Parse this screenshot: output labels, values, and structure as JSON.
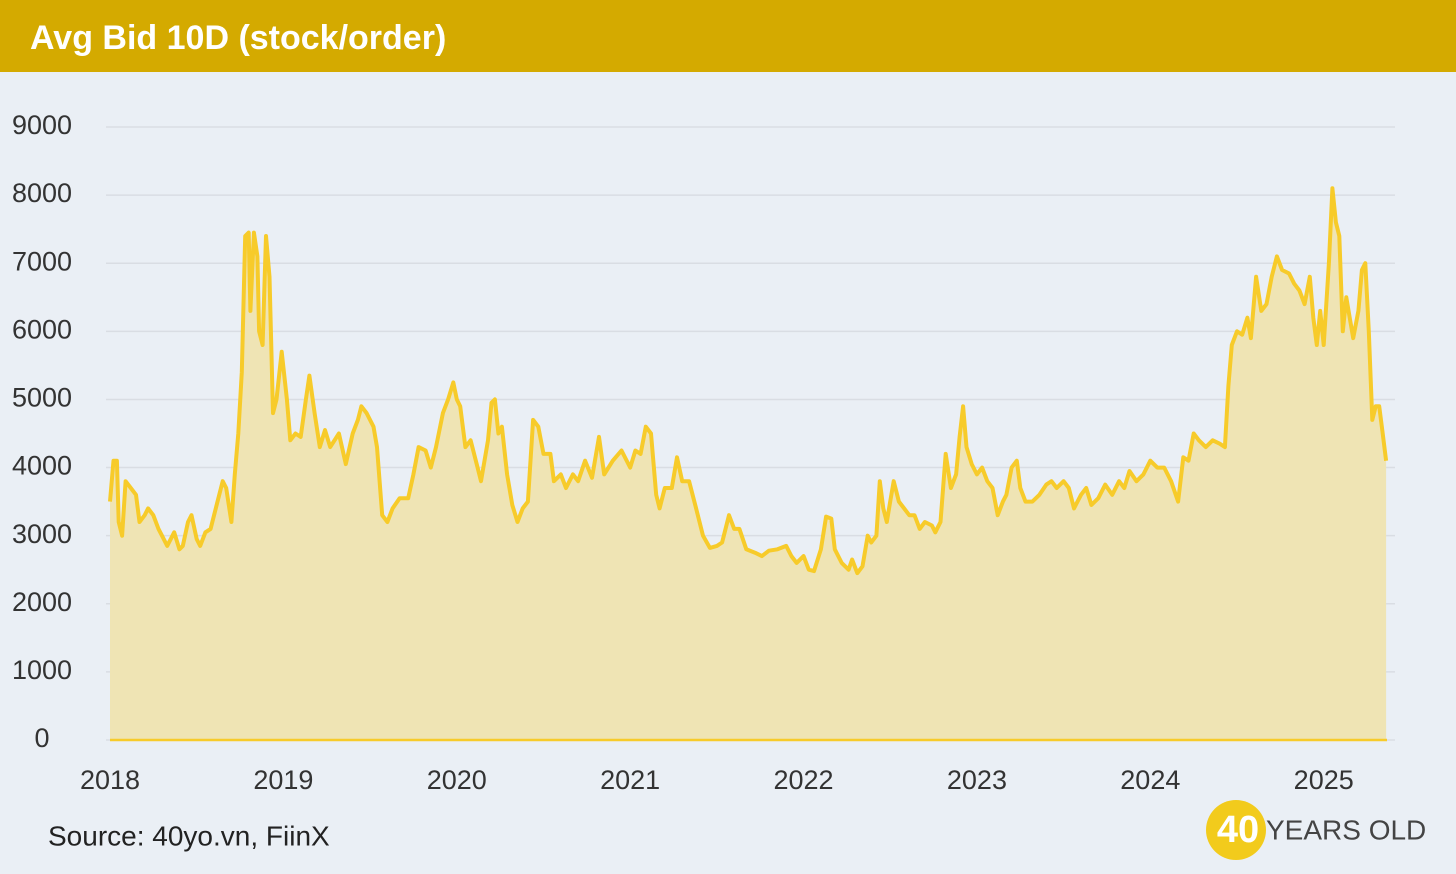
{
  "chart_data": {
    "type": "area",
    "title": "Avg Bid 10D (stock/order)",
    "source": "Source: 40yo.vn, FiinX",
    "brand": [
      "40",
      "YEARS OLD"
    ],
    "color": "#f7cb2a",
    "fill_color": "#efe4b4",
    "grid": true,
    "xlim": [
      2018,
      2025.365
    ],
    "xticks": [
      2018,
      2019,
      2020,
      2021,
      2022,
      2023,
      2024,
      2025
    ],
    "ylim": [
      0,
      9000
    ],
    "yticks": [
      0,
      1000,
      2000,
      3000,
      4000,
      5000,
      6000,
      7000,
      8000,
      9000
    ],
    "x": [
      2018.0,
      2018.02,
      2018.04,
      2018.05,
      2018.07,
      2018.09,
      2018.12,
      2018.15,
      2018.17,
      2018.2,
      2018.22,
      2018.25,
      2018.28,
      2018.3,
      2018.33,
      2018.37,
      2018.4,
      2018.42,
      2018.45,
      2018.47,
      2018.5,
      2018.52,
      2018.55,
      2018.58,
      2018.62,
      2018.65,
      2018.67,
      2018.7,
      2018.72,
      2018.74,
      2018.76,
      2018.78,
      2018.8,
      2018.81,
      2018.83,
      2018.85,
      2018.86,
      2018.88,
      2018.9,
      2018.92,
      2018.94,
      2018.96,
      2018.99,
      2019.02,
      2019.04,
      2019.07,
      2019.1,
      2019.13,
      2019.15,
      2019.18,
      2019.21,
      2019.24,
      2019.27,
      2019.32,
      2019.36,
      2019.4,
      2019.43,
      2019.45,
      2019.48,
      2019.52,
      2019.54,
      2019.57,
      2019.6,
      2019.63,
      2019.67,
      2019.72,
      2019.75,
      2019.78,
      2019.82,
      2019.85,
      2019.88,
      2019.92,
      2019.95,
      2019.98,
      2020.0,
      2020.02,
      2020.05,
      2020.08,
      2020.12,
      2020.14,
      2020.18,
      2020.2,
      2020.22,
      2020.24,
      2020.26,
      2020.29,
      2020.32,
      2020.35,
      2020.38,
      2020.41,
      2020.44,
      2020.47,
      2020.5,
      2020.54,
      2020.56,
      2020.6,
      2020.63,
      2020.67,
      2020.7,
      2020.74,
      2020.78,
      2020.82,
      2020.85,
      2020.9,
      2020.95,
      2021.0,
      2021.03,
      2021.06,
      2021.09,
      2021.12,
      2021.15,
      2021.17,
      2021.2,
      2021.24,
      2021.27,
      2021.3,
      2021.34,
      2021.38,
      2021.42,
      2021.46,
      2021.5,
      2021.53,
      2021.57,
      2021.6,
      2021.63,
      2021.67,
      2021.72,
      2021.76,
      2021.8,
      2021.85,
      2021.9,
      2021.93,
      2021.96,
      2022.0,
      2022.03,
      2022.06,
      2022.1,
      2022.13,
      2022.16,
      2022.18,
      2022.22,
      2022.26,
      2022.28,
      2022.31,
      2022.34,
      2022.37,
      2022.39,
      2022.42,
      2022.44,
      2022.46,
      2022.48,
      2022.5,
      2022.52,
      2022.55,
      2022.58,
      2022.61,
      2022.64,
      2022.67,
      2022.7,
      2022.74,
      2022.76,
      2022.79,
      2022.82,
      2022.85,
      2022.88,
      2022.9,
      2022.92,
      2022.94,
      2022.97,
      2023.0,
      2023.03,
      2023.06,
      2023.09,
      2023.12,
      2023.15,
      2023.17,
      2023.2,
      2023.23,
      2023.25,
      2023.28,
      2023.32,
      2023.36,
      2023.4,
      2023.43,
      2023.46,
      2023.5,
      2023.53,
      2023.56,
      2023.6,
      2023.63,
      2023.66,
      2023.7,
      2023.74,
      2023.78,
      2023.82,
      2023.85,
      2023.88,
      2023.92,
      2023.96,
      2024.0,
      2024.04,
      2024.08,
      2024.12,
      2024.16,
      2024.19,
      2024.22,
      2024.25,
      2024.28,
      2024.32,
      2024.36,
      2024.4,
      2024.43,
      2024.45,
      2024.47,
      2024.5,
      2024.53,
      2024.56,
      2024.58,
      2024.61,
      2024.64,
      2024.67,
      2024.7,
      2024.73,
      2024.76,
      2024.8,
      2024.83,
      2024.86,
      2024.89,
      2024.92,
      2024.94,
      2024.96,
      2024.98,
      2025.0,
      2025.03,
      2025.05,
      2025.07,
      2025.09,
      2025.11,
      2025.13,
      2025.15,
      2025.17,
      2025.2,
      2025.22,
      2025.24,
      2025.26,
      2025.28,
      2025.3,
      2025.32,
      2025.34,
      2025.36
    ],
    "values": [
      3500,
      4100,
      4100,
      3200,
      3000,
      3800,
      3700,
      3600,
      3200,
      3300,
      3400,
      3300,
      3100,
      3000,
      2850,
      3050,
      2800,
      2850,
      3200,
      3300,
      2950,
      2850,
      3050,
      3100,
      3500,
      3800,
      3700,
      3200,
      3900,
      4500,
      5400,
      7400,
      7450,
      6300,
      7450,
      7100,
      6000,
      5800,
      7400,
      6800,
      4800,
      5000,
      5700,
      5000,
      4400,
      4500,
      4450,
      5000,
      5350,
      4800,
      4300,
      4550,
      4300,
      4500,
      4050,
      4500,
      4700,
      4900,
      4800,
      4600,
      4300,
      3300,
      3200,
      3400,
      3550,
      3550,
      3900,
      4300,
      4250,
      4000,
      4300,
      4800,
      5000,
      5250,
      5000,
      4900,
      4300,
      4400,
      4000,
      3800,
      4400,
      4950,
      5000,
      4500,
      4600,
      3900,
      3450,
      3200,
      3400,
      3500,
      4700,
      4600,
      4200,
      4200,
      3800,
      3900,
      3700,
      3900,
      3800,
      4100,
      3850,
      4450,
      3900,
      4100,
      4250,
      4000,
      4250,
      4200,
      4600,
      4500,
      3600,
      3400,
      3700,
      3700,
      4150,
      3800,
      3800,
      3400,
      3000,
      2820,
      2850,
      2900,
      3300,
      3100,
      3100,
      2800,
      2750,
      2700,
      2780,
      2800,
      2850,
      2700,
      2600,
      2700,
      2500,
      2480,
      2800,
      3280,
      3250,
      2800,
      2600,
      2500,
      2650,
      2450,
      2550,
      3000,
      2900,
      3000,
      3800,
      3400,
      3200,
      3500,
      3800,
      3500,
      3400,
      3300,
      3300,
      3100,
      3200,
      3150,
      3050,
      3200,
      4200,
      3700,
      3900,
      4450,
      4900,
      4300,
      4050,
      3900,
      4000,
      3800,
      3700,
      3300,
      3500,
      3600,
      4000,
      4100,
      3700,
      3500,
      3500,
      3600,
      3750,
      3800,
      3700,
      3800,
      3700,
      3400,
      3600,
      3700,
      3450,
      3550,
      3750,
      3600,
      3800,
      3700,
      3950,
      3800,
      3900,
      4100,
      4000,
      4000,
      3800,
      3500,
      4150,
      4100,
      4500,
      4400,
      4300,
      4400,
      4350,
      4300,
      5200,
      5800,
      6000,
      5950,
      6200,
      5900,
      6800,
      6300,
      6400,
      6800,
      7100,
      6900,
      6850,
      6700,
      6600,
      6400,
      6800,
      6200,
      5800,
      6300,
      5800,
      7000,
      8100,
      7600,
      7400,
      6000,
      6500,
      6200,
      5900,
      6300,
      6900,
      7000,
      6000,
      4700,
      4900,
      4900,
      4500,
      4100
    ]
  }
}
